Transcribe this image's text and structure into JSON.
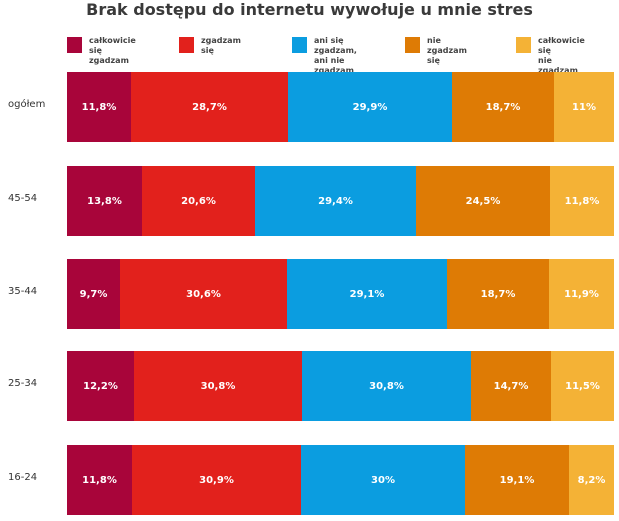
{
  "chart_data": {
    "type": "bar",
    "orientation": "horizontal",
    "stacked": true,
    "percent_stacked": true,
    "title": "Brak dostępu do internetu wywołuje u mnie stres",
    "categories": [
      "ogółem",
      "45-54",
      "35-44",
      "25-34",
      "16-24"
    ],
    "series": [
      {
        "name": "całkowicie się\nzgadzam",
        "color": "#a8053a",
        "values": [
          11.8,
          13.8,
          9.7,
          12.2,
          11.8
        ],
        "labels": [
          "11,8%",
          "13,8%",
          "9,7%",
          "12,2%",
          "11,8%"
        ]
      },
      {
        "name": "zgadzam się",
        "color": "#e2211c",
        "values": [
          28.7,
          20.6,
          30.6,
          30.8,
          30.9
        ],
        "labels": [
          "28,7%",
          "20,6%",
          "30,6%",
          "30,8%",
          "30,9%"
        ]
      },
      {
        "name": "ani się zgadzam,\nani nie zgadzam",
        "color": "#0b9de0",
        "values": [
          29.9,
          29.4,
          29.1,
          30.8,
          30
        ],
        "labels": [
          "29,9%",
          "29,4%",
          "29,1%",
          "30,8%",
          "30%"
        ]
      },
      {
        "name": "nie zgadzam się",
        "color": "#de7b05",
        "values": [
          18.7,
          24.5,
          18.7,
          14.7,
          19.1
        ],
        "labels": [
          "18,7%",
          "24,5%",
          "18,7%",
          "14,7%",
          "19,1%"
        ]
      },
      {
        "name": "całkowicie się\nnie zgadzam",
        "color": "#f4b236",
        "values": [
          11,
          11.8,
          11.9,
          11.5,
          8.2
        ],
        "labels": [
          "11%",
          "11,8%",
          "11,9%",
          "11,5%",
          "8,2%"
        ]
      }
    ],
    "legend_position": "top"
  }
}
